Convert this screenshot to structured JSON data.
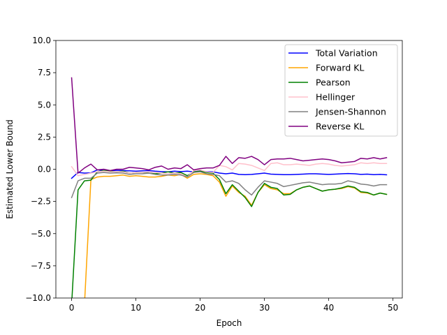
{
  "chart_data": {
    "type": "line",
    "title": "",
    "xlabel": "Epoch",
    "ylabel": "Estimated Lower Bound",
    "xlim": [
      -2.45,
      51.45
    ],
    "ylim": [
      -10.0,
      10.0
    ],
    "xticks": [
      0,
      10,
      20,
      30,
      40,
      50
    ],
    "xtick_labels": [
      "0",
      "10",
      "20",
      "30",
      "40",
      "50"
    ],
    "yticks": [
      -10.0,
      -7.5,
      -5.0,
      -2.5,
      0.0,
      2.5,
      5.0,
      7.5,
      10.0
    ],
    "ytick_labels": [
      "−10.0",
      "−7.5",
      "−5.0",
      "−2.5",
      "0.0",
      "2.5",
      "5.0",
      "7.5",
      "10.0"
    ],
    "grid": false,
    "legend_position": "top-right",
    "x": [
      0,
      1,
      2,
      3,
      4,
      5,
      6,
      7,
      8,
      9,
      10,
      11,
      12,
      13,
      14,
      15,
      16,
      17,
      18,
      19,
      20,
      21,
      22,
      23,
      24,
      25,
      26,
      27,
      28,
      29,
      30,
      31,
      32,
      33,
      34,
      35,
      36,
      37,
      38,
      39,
      40,
      41,
      42,
      43,
      44,
      45,
      46,
      47,
      48,
      49
    ],
    "series": [
      {
        "name": "Total Variation",
        "color": "#0000ff",
        "values": [
          -0.7,
          -0.25,
          -0.3,
          -0.28,
          -0.05,
          -0.1,
          -0.12,
          -0.08,
          -0.1,
          -0.12,
          -0.15,
          -0.12,
          -0.1,
          -0.15,
          -0.18,
          -0.2,
          -0.15,
          -0.18,
          -0.15,
          -0.2,
          -0.12,
          -0.18,
          -0.2,
          -0.3,
          -0.35,
          -0.3,
          -0.4,
          -0.42,
          -0.4,
          -0.35,
          -0.3,
          -0.38,
          -0.4,
          -0.42,
          -0.42,
          -0.4,
          -0.38,
          -0.35,
          -0.35,
          -0.38,
          -0.4,
          -0.38,
          -0.35,
          -0.33,
          -0.35,
          -0.4,
          -0.38,
          -0.42,
          -0.4,
          -0.43
        ]
      },
      {
        "name": "Forward KL",
        "color": "#ffa500",
        "values": [
          -10.5,
          -10.5,
          -10.5,
          -0.8,
          -0.6,
          -0.55,
          -0.55,
          -0.5,
          -0.45,
          -0.55,
          -0.5,
          -0.55,
          -0.6,
          -0.6,
          -0.55,
          -0.45,
          -0.5,
          -0.4,
          -0.7,
          -0.4,
          -0.35,
          -0.4,
          -0.5,
          -1.0,
          -2.1,
          -1.3,
          -1.8,
          -2.1,
          -2.8,
          -1.8,
          -1.2,
          -1.5,
          -1.6,
          -1.9,
          -1.9,
          -1.6,
          -1.4,
          -1.3,
          -1.5,
          -1.7,
          -1.6,
          -1.55,
          -1.5,
          -1.35,
          -1.45,
          -1.8,
          -1.85,
          -2.0,
          -1.85,
          -1.95
        ]
      },
      {
        "name": "Pearson",
        "color": "#008000",
        "values": [
          -10.5,
          -1.6,
          -0.9,
          -0.85,
          -0.2,
          -0.1,
          -0.15,
          -0.2,
          -0.15,
          -0.3,
          -0.25,
          -0.25,
          -0.3,
          -0.35,
          -0.3,
          -0.2,
          -0.3,
          -0.25,
          -0.5,
          -0.2,
          -0.15,
          -0.25,
          -0.3,
          -0.8,
          -1.9,
          -1.2,
          -1.7,
          -2.2,
          -2.9,
          -1.8,
          -1.1,
          -1.4,
          -1.5,
          -2.0,
          -1.95,
          -1.6,
          -1.4,
          -1.3,
          -1.5,
          -1.7,
          -1.6,
          -1.55,
          -1.45,
          -1.3,
          -1.4,
          -1.75,
          -1.8,
          -2.0,
          -1.85,
          -1.95
        ]
      },
      {
        "name": "Hellinger",
        "color": "#ffc0cb",
        "values": [
          0.2,
          -0.5,
          -0.4,
          -0.3,
          -0.2,
          -0.15,
          -0.2,
          -0.18,
          -0.2,
          -0.3,
          -0.25,
          -0.25,
          -0.2,
          -0.25,
          -0.3,
          -0.35,
          -0.3,
          -0.35,
          -0.6,
          -0.1,
          -0.05,
          -0.2,
          -0.25,
          0.3,
          0.2,
          -0.05,
          0.45,
          0.4,
          0.3,
          0.1,
          -0.1,
          0.45,
          0.5,
          0.35,
          0.35,
          0.4,
          0.35,
          0.3,
          0.4,
          0.45,
          0.4,
          0.3,
          0.25,
          0.3,
          0.35,
          0.5,
          0.45,
          0.5,
          0.45,
          0.45
        ]
      },
      {
        "name": "Jensen-Shannon",
        "color": "#808080",
        "values": [
          -2.2,
          -0.9,
          -0.7,
          -0.7,
          -0.3,
          -0.25,
          -0.3,
          -0.28,
          -0.3,
          -0.4,
          -0.35,
          -0.35,
          -0.3,
          -0.4,
          -0.45,
          -0.45,
          -0.4,
          -0.45,
          -0.6,
          -0.25,
          -0.2,
          -0.35,
          -0.4,
          -0.5,
          -1.0,
          -0.9,
          -1.1,
          -1.6,
          -2.0,
          -1.4,
          -0.9,
          -1.0,
          -1.1,
          -1.35,
          -1.25,
          -1.15,
          -1.05,
          -1.0,
          -1.1,
          -1.2,
          -1.15,
          -1.15,
          -1.1,
          -0.9,
          -1.0,
          -1.15,
          -1.2,
          -1.3,
          -1.2,
          -1.2
        ]
      },
      {
        "name": "Reverse KL",
        "color": "#800080",
        "values": [
          7.1,
          -0.3,
          0.1,
          0.4,
          -0.05,
          0.0,
          -0.1,
          0.0,
          0.0,
          0.15,
          0.1,
          0.05,
          -0.05,
          0.15,
          0.25,
          0.0,
          0.1,
          0.05,
          0.35,
          -0.05,
          0.05,
          0.1,
          0.1,
          0.3,
          1.0,
          0.45,
          0.9,
          0.85,
          1.0,
          0.75,
          0.35,
          0.75,
          0.8,
          0.8,
          0.85,
          0.75,
          0.65,
          0.7,
          0.75,
          0.8,
          0.75,
          0.65,
          0.5,
          0.55,
          0.6,
          0.85,
          0.8,
          0.9,
          0.8,
          0.9
        ]
      }
    ]
  }
}
